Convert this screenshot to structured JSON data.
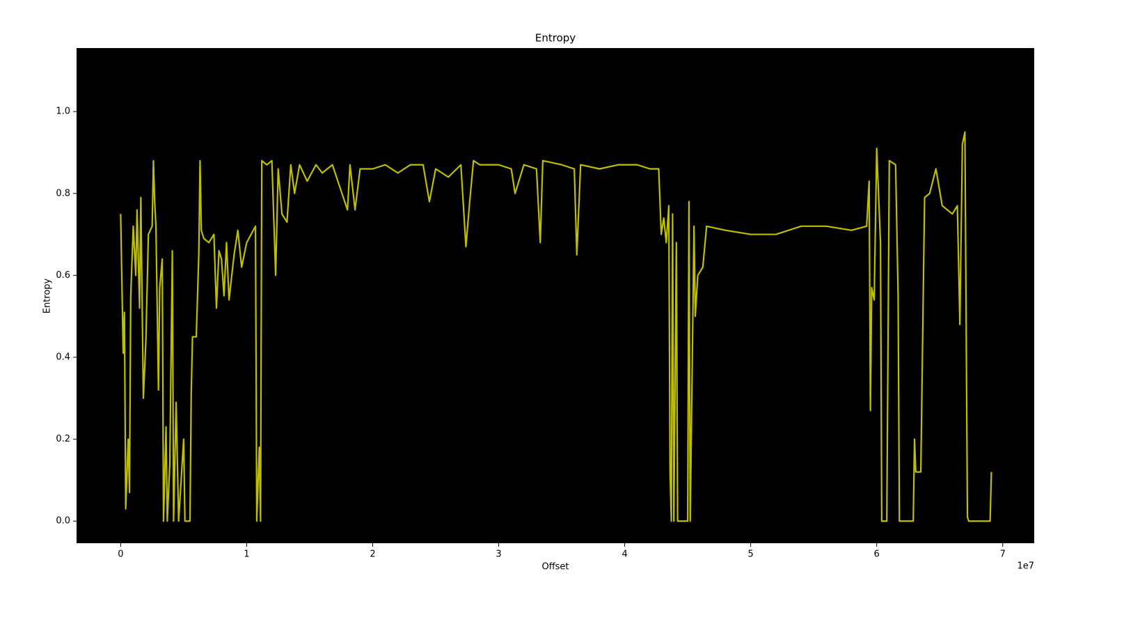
{
  "chart_data": {
    "type": "line",
    "title": "Entropy",
    "xlabel": "Offset",
    "ylabel": "Entropy",
    "x_offset_text": "1e7",
    "x": [
      0,
      200000,
      300000,
      400000,
      600000,
      700000,
      800000,
      1000000,
      1200000,
      1300000,
      1500000,
      1600000,
      1800000,
      2000000,
      2200000,
      2500000,
      2600000,
      2700000,
      2800000,
      3000000,
      3100000,
      3300000,
      3400000,
      3600000,
      3700000,
      3900000,
      4100000,
      4200000,
      4400000,
      4600000,
      5000000,
      5100000,
      5500000,
      5600000,
      5700000,
      6000000,
      6200000,
      6300000,
      6400000,
      6600000,
      7000000,
      7400000,
      7600000,
      7800000,
      8000000,
      8200000,
      8400000,
      8600000,
      9000000,
      9300000,
      9600000,
      10000000,
      10700000,
      10800000,
      11000000,
      11100000,
      11200000,
      11600000,
      12000000,
      12300000,
      12500000,
      12800000,
      13200000,
      13500000,
      13800000,
      14200000,
      14800000,
      15500000,
      16000000,
      16800000,
      18000000,
      18200000,
      18600000,
      19000000,
      20000000,
      21000000,
      22000000,
      23000000,
      24000000,
      24500000,
      25000000,
      26000000,
      27000000,
      27400000,
      27700000,
      28000000,
      28500000,
      30000000,
      31000000,
      31300000,
      32000000,
      33000000,
      33300000,
      33500000,
      35000000,
      36000000,
      36200000,
      36500000,
      38000000,
      39500000,
      41000000,
      42000000,
      42700000,
      42900000,
      43100000,
      43300000,
      43500000,
      43600000,
      43700000,
      43800000,
      43900000,
      44100000,
      44200000,
      44500000,
      45000000,
      45100000,
      45200000,
      45500000,
      45600000,
      45800000,
      46200000,
      46500000,
      48000000,
      50000000,
      52000000,
      54000000,
      56000000,
      58000000,
      59200000,
      59400000,
      59500000,
      59600000,
      59800000,
      60000000,
      60300000,
      60400000,
      60800000,
      61000000,
      61500000,
      61700000,
      61800000,
      62900000,
      63000000,
      63100000,
      63500000,
      63800000,
      64200000,
      64700000,
      65200000,
      66000000,
      66400000,
      66600000,
      66800000,
      67000000,
      67200000,
      67300000,
      69000000,
      69100000
    ],
    "series": [
      {
        "color": "#bfbf00",
        "values": [
          0.75,
          0.41,
          0.51,
          0.03,
          0.2,
          0.07,
          0.55,
          0.72,
          0.6,
          0.76,
          0.52,
          0.79,
          0.3,
          0.44,
          0.7,
          0.72,
          0.88,
          0.78,
          0.72,
          0.32,
          0.57,
          0.64,
          0,
          0.23,
          0,
          0.14,
          0.66,
          0,
          0.29,
          0,
          0.2,
          0,
          0,
          0.31,
          0.45,
          0.45,
          0.65,
          0.88,
          0.71,
          0.69,
          0.68,
          0.7,
          0.52,
          0.66,
          0.64,
          0.55,
          0.68,
          0.54,
          0.65,
          0.71,
          0.62,
          0.68,
          0.72,
          0,
          0.18,
          0,
          0.88,
          0.87,
          0.88,
          0.6,
          0.86,
          0.75,
          0.73,
          0.87,
          0.8,
          0.87,
          0.83,
          0.87,
          0.85,
          0.87,
          0.76,
          0.87,
          0.76,
          0.86,
          0.86,
          0.87,
          0.85,
          0.87,
          0.87,
          0.78,
          0.86,
          0.84,
          0.87,
          0.67,
          0.78,
          0.88,
          0.87,
          0.87,
          0.86,
          0.8,
          0.87,
          0.86,
          0.68,
          0.88,
          0.87,
          0.86,
          0.65,
          0.87,
          0.86,
          0.87,
          0.87,
          0.86,
          0.86,
          0.7,
          0.74,
          0.68,
          0.77,
          0.12,
          0,
          0.75,
          0,
          0.68,
          0,
          0,
          0,
          0.78,
          0,
          0.72,
          0.5,
          0.6,
          0.62,
          0.72,
          0.71,
          0.7,
          0.7,
          0.72,
          0.72,
          0.71,
          0.72,
          0.83,
          0.27,
          0.57,
          0.54,
          0.91,
          0.68,
          0,
          0,
          0.88,
          0.87,
          0.55,
          0,
          0,
          0.2,
          0.12,
          0.12,
          0.79,
          0.8,
          0.86,
          0.77,
          0.75,
          0.77,
          0.48,
          0.92,
          0.95,
          0.01,
          0,
          0,
          0.12
        ]
      }
    ],
    "xlim": [
      -3500000,
      72500000
    ],
    "xticks": [
      0,
      {
        "value": 10000000,
        "label": "1"
      },
      {
        "value": 20000000,
        "label": "2"
      },
      {
        "value": 30000000,
        "label": "3"
      },
      {
        "value": 40000000,
        "label": "4"
      },
      {
        "value": 50000000,
        "label": "5"
      },
      {
        "value": 60000000,
        "label": "6"
      },
      {
        "value": 70000000,
        "label": "7"
      }
    ],
    "ylim": [
      -0.054,
      1.155
    ],
    "yticks": [
      {
        "value": 0,
        "label": "0.0"
      },
      0.2,
      0.4,
      0.6,
      0.8,
      {
        "value": 1,
        "label": "1.0"
      }
    ],
    "background": "#000000"
  }
}
